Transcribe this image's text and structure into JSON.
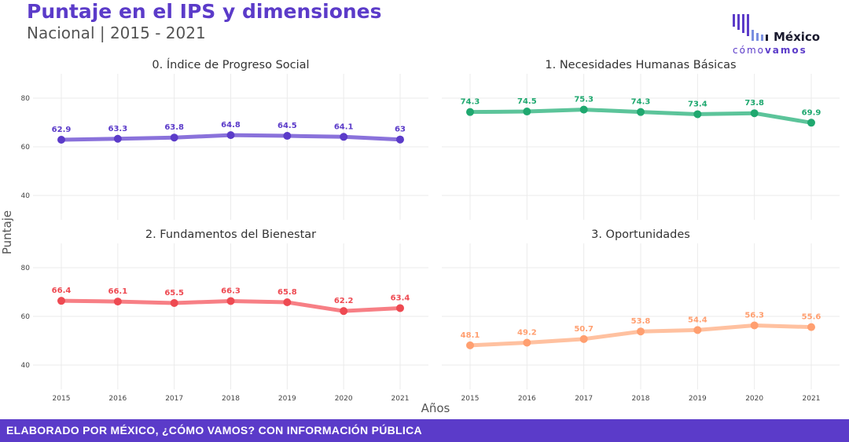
{
  "header": {
    "title": "Puntaje en el IPS y dimensiones",
    "subtitle": "Nacional | 2015 - 2021"
  },
  "logo": {
    "name": "México",
    "tagline_a": "cómo",
    "tagline_b": "vamos"
  },
  "footer": {
    "text": "ELABORADO POR MÉXICO, ¿CÓMO VAMOS? CON INFORMACIÓN PÚBLICA"
  },
  "chart_data": {
    "type": "line",
    "xlabel": "Años",
    "ylabel": "Puntaje",
    "x": [
      "2015",
      "2016",
      "2017",
      "2018",
      "2019",
      "2020",
      "2021"
    ],
    "ylim": [
      30,
      90
    ],
    "yticks": [
      40,
      60,
      80
    ],
    "grid": true,
    "panels": [
      {
        "title": "0. Índice de Progreso Social",
        "values": [
          62.9,
          63.3,
          63.8,
          64.8,
          64.5,
          64.1,
          63
        ],
        "labels": [
          "62.9",
          "63.3",
          "63.8",
          "64.8",
          "64.5",
          "64.1",
          "63"
        ],
        "line_color": "#8A72DB",
        "point_color": "#5B3BC9"
      },
      {
        "title": "1. Necesidades Humanas Básicas",
        "values": [
          74.3,
          74.5,
          75.3,
          74.3,
          73.4,
          73.8,
          69.9
        ],
        "labels": [
          "74.3",
          "74.5",
          "75.3",
          "74.3",
          "73.4",
          "73.8",
          "69.9"
        ],
        "line_color": "#5CC49A",
        "point_color": "#1FA86F"
      },
      {
        "title": "2. Fundamentos del Bienestar",
        "values": [
          66.4,
          66.1,
          65.5,
          66.3,
          65.8,
          62.2,
          63.4
        ],
        "labels": [
          "66.4",
          "66.1",
          "65.5",
          "66.3",
          "65.8",
          "62.2",
          "63.4"
        ],
        "line_color": "#F77F85",
        "point_color": "#EE4A52"
      },
      {
        "title": "3. Oportunidades",
        "values": [
          48.1,
          49.2,
          50.7,
          53.8,
          54.4,
          56.3,
          55.6
        ],
        "labels": [
          "48.1",
          "49.2",
          "50.7",
          "53.8",
          "54.4",
          "56.3",
          "55.6"
        ],
        "line_color": "#FFC1A0",
        "point_color": "#FF9F70"
      }
    ]
  }
}
